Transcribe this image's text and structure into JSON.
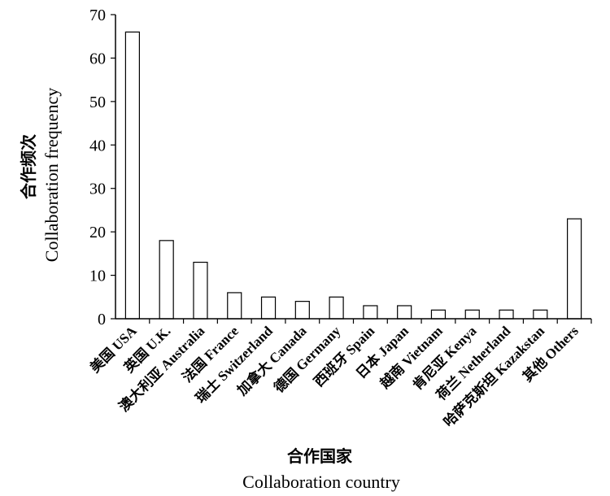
{
  "chart_data": {
    "type": "bar",
    "categories": [
      "美国 USA",
      "英国 U.K.",
      "澳大利亚 Australia",
      "法国 France",
      "瑞士 Switzerland",
      "加拿大 Canada",
      "德国 Germany",
      "西班牙 Spain",
      "日本 Japan",
      "越南 Vietnam",
      "肯尼亚 Kenya",
      "荷兰 Netherland",
      "哈萨克斯坦 Kazakstan",
      "其他 Others"
    ],
    "values": [
      66,
      18,
      13,
      6,
      5,
      4,
      5,
      3,
      3,
      2,
      2,
      2,
      2,
      23
    ],
    "title": "",
    "ylabel_cn": "合作频次",
    "ylabel_en": "Collaboration frequency",
    "xlabel_cn": "合作国家",
    "xlabel_en": "Collaboration country",
    "ylim": [
      0,
      70
    ],
    "yticks": [
      0,
      10,
      20,
      30,
      40,
      50,
      60,
      70
    ],
    "grid": false,
    "bar_fill": "#ffffff",
    "bar_stroke": "#000000"
  }
}
